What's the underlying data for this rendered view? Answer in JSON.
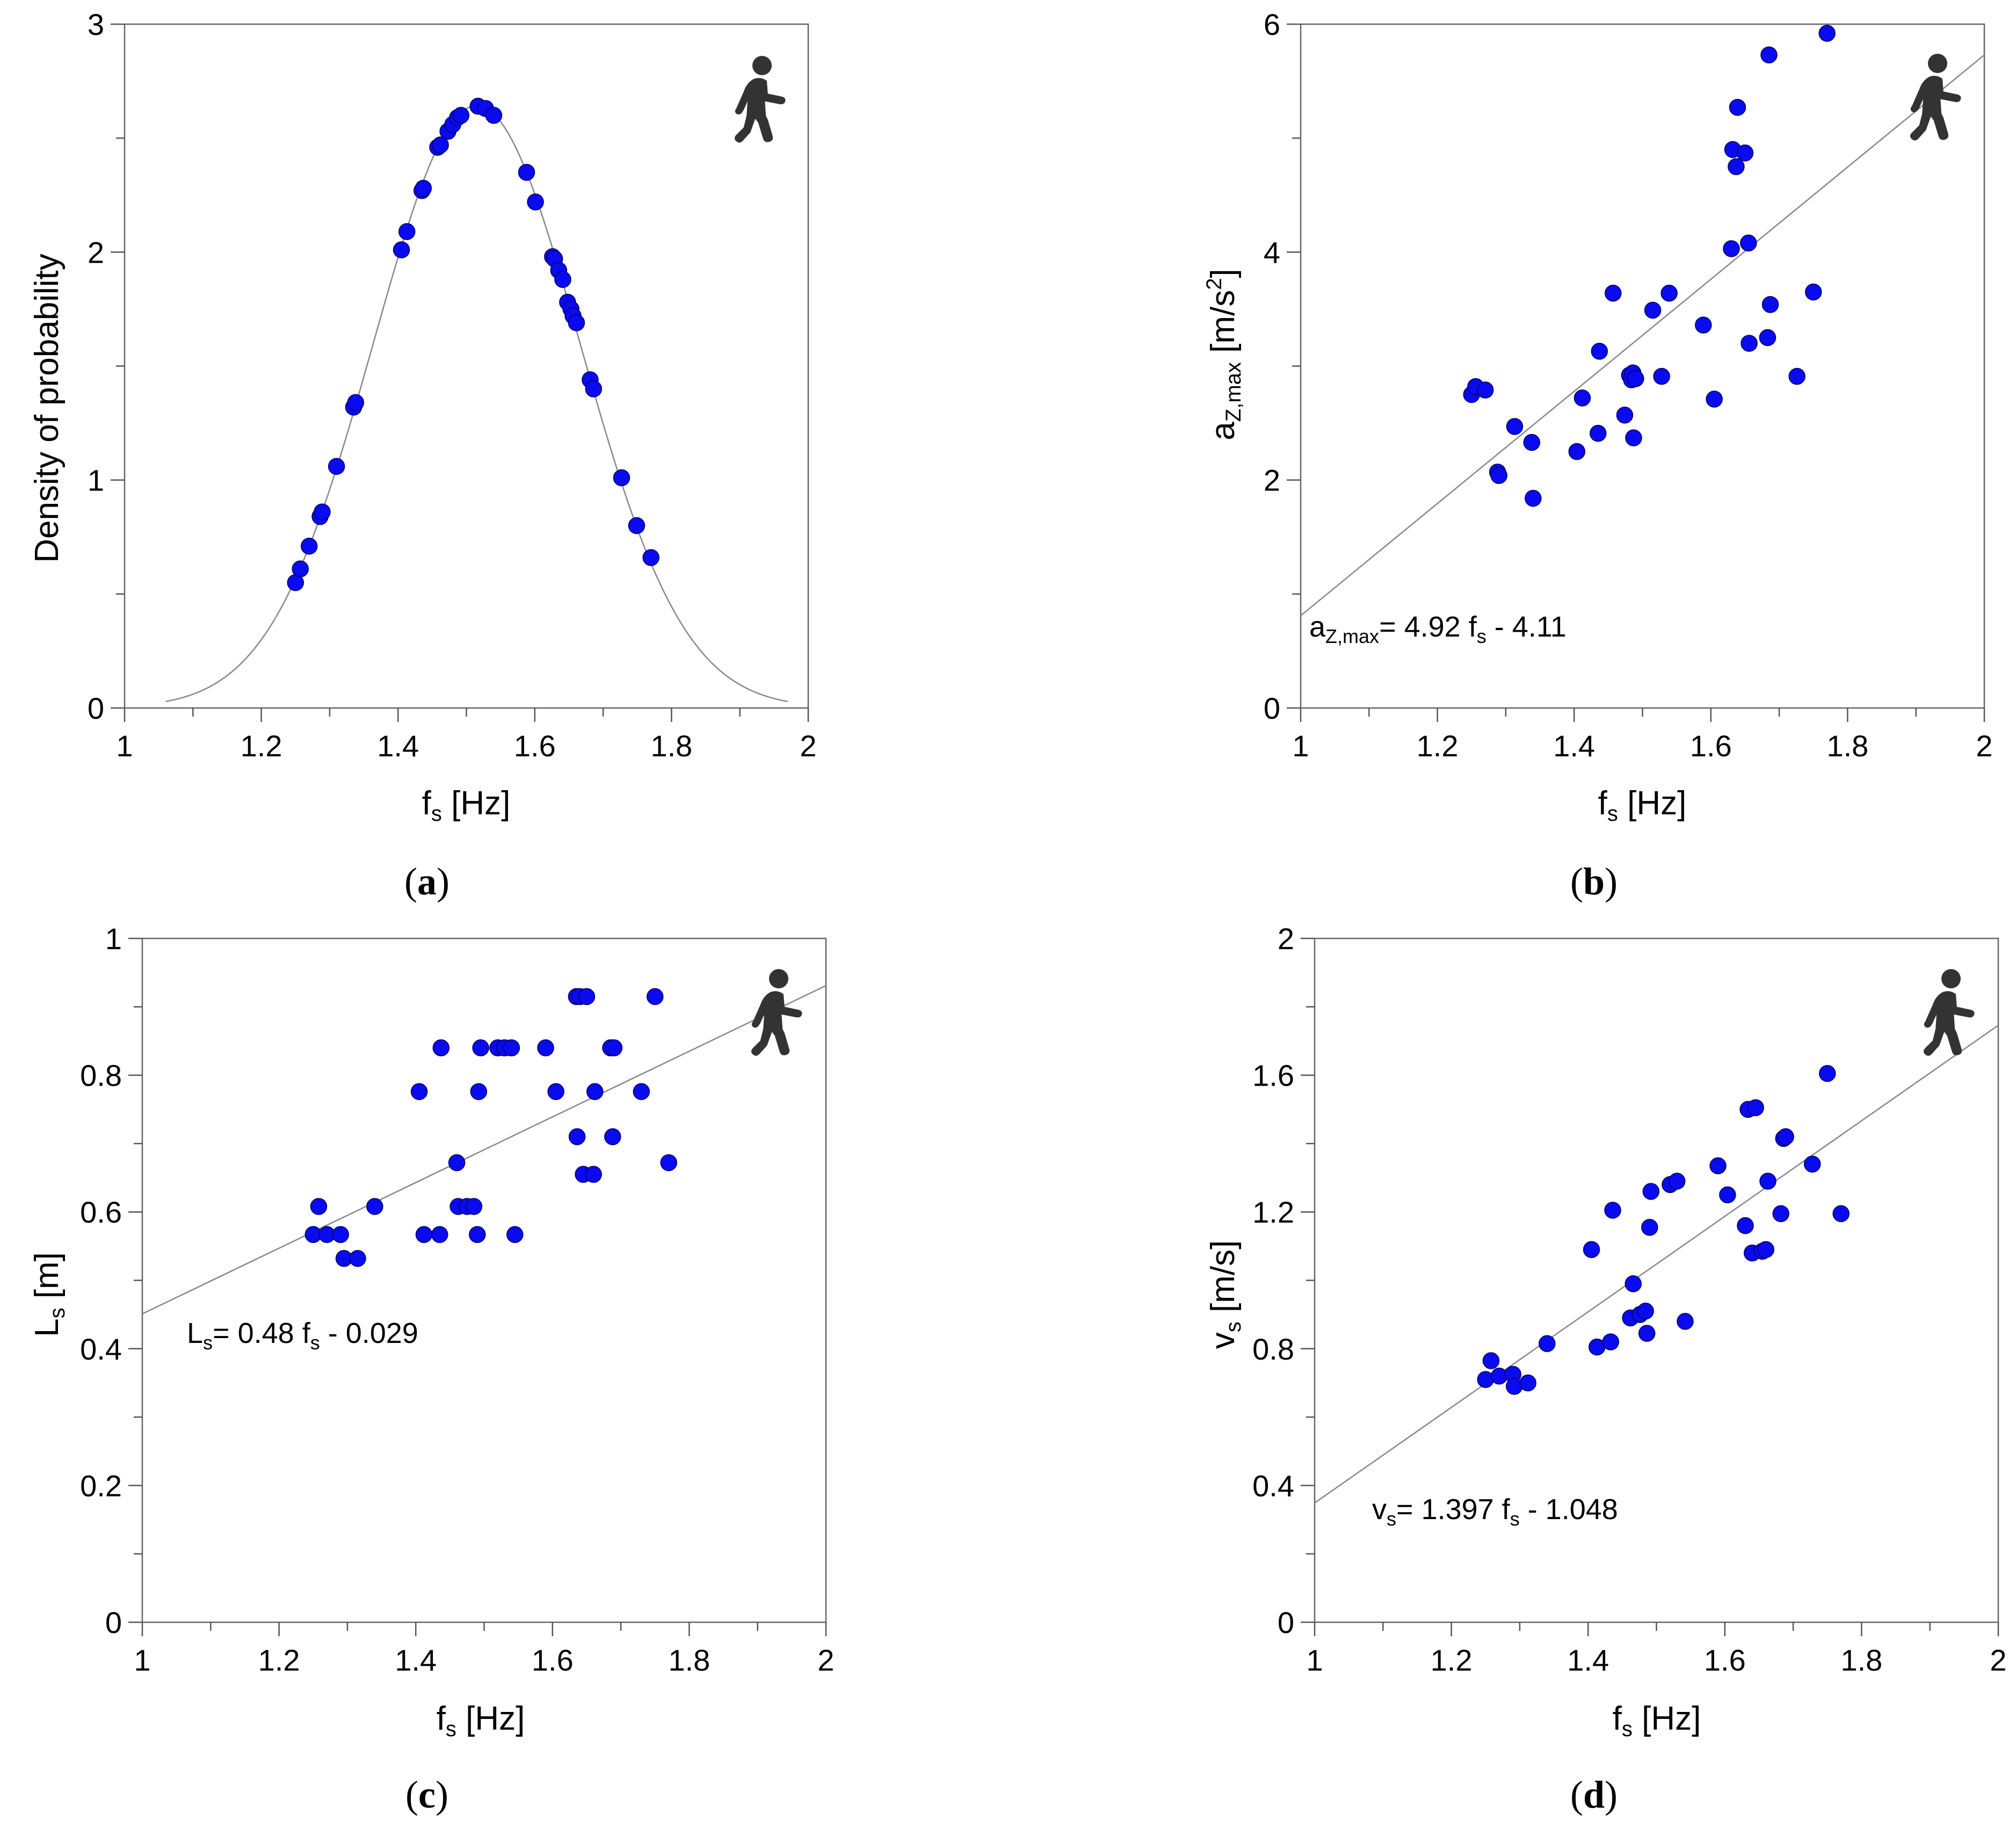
{
  "chart_data": [
    {
      "id": "a",
      "type": "scatter",
      "panel_label": "a",
      "xlabel": "f",
      "xlabel_sub": "s",
      "xlabel_unit": " [Hz]",
      "ylabel": "Density of probability",
      "xlim": [
        1,
        2
      ],
      "ylim": [
        0,
        3
      ],
      "xticks": [
        1,
        1.2,
        1.4,
        1.6,
        1.8,
        2
      ],
      "xtick_labels": [
        "1",
        "1.2",
        "1.4",
        "1.6",
        "1.8",
        "2"
      ],
      "yticks": [
        0,
        1,
        2,
        3
      ],
      "ytick_labels": [
        "0",
        "1",
        "2",
        "3"
      ],
      "curve": {
        "type": "normal",
        "mean": 1.515,
        "sd": 0.151,
        "x_range": [
          1.06,
          1.97
        ]
      },
      "x": [
        1.25,
        1.257,
        1.27,
        1.286,
        1.289,
        1.31,
        1.335,
        1.338,
        1.405,
        1.413,
        1.435,
        1.437,
        1.458,
        1.462,
        1.473,
        1.48,
        1.487,
        1.492,
        1.517,
        1.528,
        1.54,
        1.588,
        1.601,
        1.626,
        1.629,
        1.635,
        1.641,
        1.648,
        1.653,
        1.656,
        1.661,
        1.681,
        1.686,
        1.727,
        1.749,
        1.77
      ],
      "y": [
        0.55,
        0.61,
        0.71,
        0.84,
        0.86,
        1.06,
        1.32,
        1.34,
        2.01,
        2.09,
        2.27,
        2.28,
        2.46,
        2.47,
        2.53,
        2.56,
        2.59,
        2.6,
        2.64,
        2.63,
        2.6,
        2.35,
        2.22,
        1.98,
        1.97,
        1.92,
        1.88,
        1.78,
        1.75,
        1.72,
        1.69,
        1.44,
        1.4,
        1.01,
        0.8,
        0.66
      ]
    },
    {
      "id": "b",
      "type": "scatter",
      "panel_label": "b",
      "xlabel": "f",
      "xlabel_sub": "s",
      "xlabel_unit": " [Hz]",
      "ylabel": "a",
      "ylabel_sub": "Z,max",
      "ylabel_unit": " [m/s",
      "ylabel_sup": "2",
      "ylabel_end": "]",
      "xlim": [
        1,
        2
      ],
      "ylim": [
        0,
        6
      ],
      "xticks": [
        1,
        1.2,
        1.4,
        1.6,
        1.8,
        2
      ],
      "xtick_labels": [
        "1",
        "1.2",
        "1.4",
        "1.6",
        "1.8",
        "2"
      ],
      "yticks": [
        0,
        2,
        4,
        6
      ],
      "ytick_labels": [
        "0",
        "2",
        "4",
        "6"
      ],
      "fit": {
        "slope": 4.92,
        "intercept": -4.11
      },
      "equation": {
        "lhs": "a",
        "lhs_sub": "Z,max",
        "mid": "= 4.92 f",
        "var_sub": "s",
        "rhs": " - 4.11"
      },
      "x": [
        1.25,
        1.256,
        1.27,
        1.288,
        1.29,
        1.313,
        1.338,
        1.34,
        1.404,
        1.412,
        1.435,
        1.437,
        1.457,
        1.474,
        1.481,
        1.484,
        1.486,
        1.487,
        1.49,
        1.515,
        1.528,
        1.539,
        1.589,
        1.605,
        1.63,
        1.632,
        1.637,
        1.639,
        1.65,
        1.655,
        1.656,
        1.683,
        1.685,
        1.687,
        1.726,
        1.75,
        1.77
      ],
      "y": [
        2.75,
        2.82,
        2.79,
        2.07,
        2.04,
        2.47,
        2.33,
        1.84,
        2.25,
        2.72,
        2.41,
        3.13,
        3.64,
        2.57,
        2.92,
        2.88,
        2.94,
        2.37,
        2.89,
        3.49,
        2.91,
        3.64,
        3.36,
        2.71,
        4.03,
        4.9,
        4.75,
        5.27,
        4.87,
        4.08,
        3.2,
        3.25,
        5.73,
        3.54,
        2.91,
        3.65,
        5.92
      ]
    },
    {
      "id": "c",
      "type": "scatter",
      "panel_label": "c",
      "xlabel": "f",
      "xlabel_sub": "s",
      "xlabel_unit": " [Hz]",
      "ylabel": "L",
      "ylabel_sub": "s",
      "ylabel_unit": " [m]",
      "xlim": [
        1,
        2
      ],
      "ylim": [
        0,
        1
      ],
      "xticks": [
        1,
        1.2,
        1.4,
        1.6,
        1.8,
        2
      ],
      "xtick_labels": [
        "1",
        "1.2",
        "1.4",
        "1.6",
        "1.8",
        "2"
      ],
      "yticks": [
        0,
        0.2,
        0.4,
        0.6,
        0.8,
        1
      ],
      "ytick_labels": [
        "0",
        "0.2",
        "0.4",
        "0.6",
        "0.8",
        "1"
      ],
      "fit": {
        "slope": 0.48,
        "intercept": -0.029
      },
      "equation": {
        "lhs": "L",
        "lhs_sub": "s",
        "mid": "= 0.48 f",
        "var_sub": "s",
        "rhs": " - 0.029"
      },
      "x": [
        1.25,
        1.258,
        1.27,
        1.29,
        1.295,
        1.315,
        1.34,
        1.405,
        1.412,
        1.435,
        1.437,
        1.46,
        1.462,
        1.475,
        1.485,
        1.49,
        1.492,
        1.495,
        1.52,
        1.53,
        1.54,
        1.545,
        1.59,
        1.605,
        1.635,
        1.636,
        1.64,
        1.645,
        1.65,
        1.66,
        1.662,
        1.685,
        1.688,
        1.69,
        1.73,
        1.75,
        1.77
      ],
      "y": [
        0.567,
        0.608,
        0.567,
        0.567,
        0.532,
        0.532,
        0.608,
        0.776,
        0.567,
        0.567,
        0.84,
        0.672,
        0.608,
        0.608,
        0.608,
        0.567,
        0.776,
        0.84,
        0.84,
        0.84,
        0.84,
        0.567,
        0.84,
        0.776,
        0.915,
        0.71,
        0.915,
        0.655,
        0.915,
        0.655,
        0.776,
        0.84,
        0.71,
        0.84,
        0.776,
        0.915,
        0.672
      ]
    },
    {
      "id": "d",
      "type": "scatter",
      "panel_label": "d",
      "xlabel": "f",
      "xlabel_sub": "s",
      "xlabel_unit": " [Hz]",
      "ylabel": "v",
      "ylabel_sub": "s",
      "ylabel_unit": " [m/s]",
      "xlim": [
        1,
        2
      ],
      "ylim": [
        0,
        2
      ],
      "xticks": [
        1,
        1.2,
        1.4,
        1.6,
        1.8,
        2
      ],
      "xtick_labels": [
        "1",
        "1.2",
        "1.4",
        "1.6",
        "1.8",
        "2"
      ],
      "yticks": [
        0,
        0.4,
        0.8,
        1.2,
        1.6,
        2
      ],
      "ytick_labels": [
        "0",
        "0.4",
        "0.8",
        "1.2",
        "1.6",
        "2"
      ],
      "fit": {
        "slope": 1.397,
        "intercept": -1.048
      },
      "equation": {
        "lhs": "v",
        "lhs_sub": "s",
        "mid": "= 1.397 f",
        "var_sub": "s",
        "rhs": " - 1.048"
      },
      "x": [
        1.25,
        1.258,
        1.27,
        1.29,
        1.292,
        1.312,
        1.34,
        1.405,
        1.413,
        1.433,
        1.436,
        1.462,
        1.466,
        1.476,
        1.484,
        1.486,
        1.49,
        1.492,
        1.52,
        1.53,
        1.542,
        1.59,
        1.604,
        1.63,
        1.634,
        1.64,
        1.645,
        1.655,
        1.66,
        1.663,
        1.682,
        1.686,
        1.689,
        1.728,
        1.75,
        1.77
      ],
      "y": [
        0.71,
        0.765,
        0.72,
        0.725,
        0.69,
        0.7,
        0.815,
        1.09,
        0.805,
        0.82,
        1.205,
        0.89,
        0.99,
        0.9,
        0.91,
        0.845,
        1.155,
        1.26,
        1.28,
        1.29,
        0.88,
        1.335,
        1.25,
        1.16,
        1.5,
        1.08,
        1.505,
        1.085,
        1.09,
        1.29,
        1.195,
        1.415,
        1.42,
        1.34,
        1.605,
        1.195
      ]
    }
  ],
  "icons": {
    "walker": "pedestrian-walking-icon",
    "walker_color": "#333333",
    "marker_color": "#0a0af0"
  }
}
